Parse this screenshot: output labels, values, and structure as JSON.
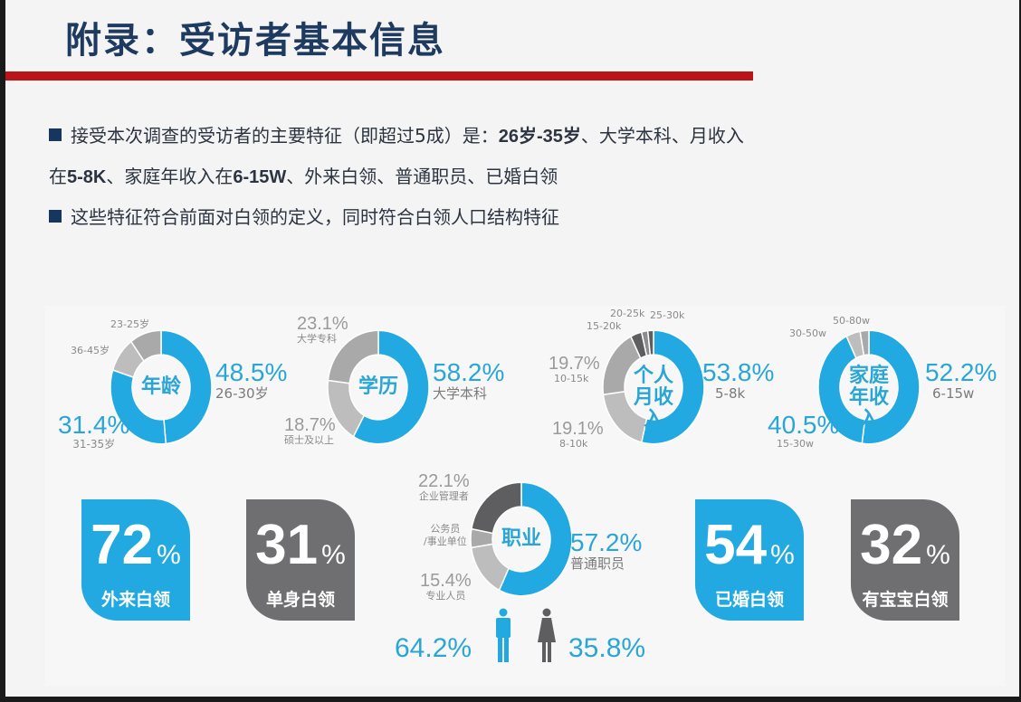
{
  "header": {
    "title": "附录：受访者基本信息"
  },
  "bullets": [
    {
      "line1_parts": [
        "接受本次调查的受访者的主要特征（即超过5成）是：",
        "26岁-35岁",
        "、大学本科、月收入"
      ],
      "line2_parts": [
        "在",
        "5-8K",
        "、家庭年收入在",
        "6-15W",
        "、外来白领、普通职员、已婚白领"
      ]
    },
    {
      "text": "这些特征符合前面对白领的定义，同时符合白领人口结构特征"
    }
  ],
  "colors": {
    "accent_blue": "#22a9e1",
    "light_gray": "#bdbdbd",
    "mid_gray": "#a6a6a6",
    "dark_gray": "#5e5e60",
    "title_navy": "#1e3a5f",
    "rule_red": "#b8141a"
  },
  "chart_data": [
    {
      "type": "pie",
      "title": "年龄",
      "donut": true,
      "slices": [
        {
          "label": "26-30岁",
          "value": 48.5,
          "color": "#22a9e1"
        },
        {
          "label": "31-35岁",
          "value": 31.4,
          "color": "#22a9e1"
        },
        {
          "label": "36-45岁",
          "value": 10.0,
          "color": "#bdbdbd",
          "value_shown": false
        },
        {
          "label": "23-25岁",
          "value": 10.1,
          "color": "#a9a9a9",
          "value_shown": false
        }
      ]
    },
    {
      "type": "pie",
      "title": "学历",
      "donut": true,
      "slices": [
        {
          "label": "大学本科",
          "value": 58.2,
          "color": "#22a9e1"
        },
        {
          "label": "硕士及以上",
          "value": 18.7,
          "color": "#bdbdbd"
        },
        {
          "label": "大学专科",
          "value": 23.1,
          "color": "#a9a9a9"
        }
      ]
    },
    {
      "type": "pie",
      "title": "个人月收入",
      "donut": true,
      "slices": [
        {
          "label": "5-8k",
          "value": 53.8,
          "color": "#22a9e1"
        },
        {
          "label": "8-10k",
          "value": 19.1,
          "color": "#bdbdbd"
        },
        {
          "label": "10-15k",
          "value": 19.7,
          "color": "#a9a9a9"
        },
        {
          "label": "15-20k",
          "value": 3.6,
          "color": "#5e5e60",
          "value_shown": false
        },
        {
          "label": "20-25k",
          "value": 2.0,
          "color": "#8c8c8c",
          "value_shown": false
        },
        {
          "label": "25-30k",
          "value": 1.8,
          "color": "#5e5e60",
          "value_shown": false
        }
      ]
    },
    {
      "type": "pie",
      "title": "家庭年收入",
      "donut": true,
      "slices": [
        {
          "label": "6-15w",
          "value": 52.2,
          "color": "#22a9e1"
        },
        {
          "label": "15-30w",
          "value": 40.5,
          "color": "#22a9e1"
        },
        {
          "label": "30-50w",
          "value": 4.5,
          "color": "#bdbdbd",
          "value_shown": false
        },
        {
          "label": "50-80w",
          "value": 2.8,
          "color": "#a9a9a9",
          "value_shown": false
        }
      ]
    },
    {
      "type": "pie",
      "title": "职业",
      "donut": true,
      "slices": [
        {
          "label": "普通职员",
          "value": 57.2,
          "color": "#22a9e1"
        },
        {
          "label": "专业人员",
          "value": 15.4,
          "color": "#bdbdbd"
        },
        {
          "label": "公务员/事业单位",
          "value": 5.3,
          "color": "#a9a9a9",
          "value_shown": false
        },
        {
          "label": "企业管理者",
          "value": 22.1,
          "color": "#5e5e60"
        }
      ]
    },
    {
      "type": "bar",
      "title": "性别",
      "categories": [
        "男",
        "女"
      ],
      "values": [
        64.2,
        35.8
      ]
    },
    {
      "type": "table",
      "title": "白领属性",
      "rows": [
        {
          "label": "外来白领",
          "value": 72
        },
        {
          "label": "单身白领",
          "value": 31
        },
        {
          "label": "已婚白领",
          "value": 54
        },
        {
          "label": "有宝宝白领",
          "value": 32
        }
      ]
    }
  ],
  "labels": {
    "age": {
      "center": "年龄",
      "main_pct": "48.5%",
      "main_sub": "26-30岁",
      "second_pct": "31.4%",
      "second_sub": "31-35岁",
      "small1": "36-45岁",
      "small2": "23-25岁"
    },
    "edu": {
      "center": "学历",
      "main_pct": "58.2%",
      "main_sub": "大学本科",
      "top_pct": "23.1%",
      "top_sub": "大学专科",
      "bottom_pct": "18.7%",
      "bottom_sub": "硕士及以上"
    },
    "income": {
      "center_line1": "个人",
      "center_line2": "月收入",
      "main_pct": "53.8%",
      "main_sub": "5-8k",
      "mid_pct": "19.7%",
      "mid_sub": "10-15k",
      "bottom_pct": "19.1%",
      "bottom_sub": "8-10k",
      "small1": "15-20k",
      "small2": "20-25k",
      "small3": "25-30k"
    },
    "family": {
      "center_line1": "家庭",
      "center_line2": "年收入",
      "main_pct": "52.2%",
      "main_sub": "6-15w",
      "second_pct": "40.5%",
      "second_sub": "15-30w",
      "small1": "30-50w",
      "small2": "50-80w"
    },
    "job": {
      "center": "职业",
      "main_pct": "57.2%",
      "main_sub": "普通职员",
      "top_pct": "22.1%",
      "top_sub": "企业管理者",
      "mid_sub1": "公务员",
      "mid_sub2": "/事业单位",
      "bottom_pct": "15.4%",
      "bottom_sub": "专业人员"
    },
    "gender": {
      "male_pct": "64.2%",
      "female_pct": "35.8%"
    }
  },
  "cards": [
    {
      "num": "72",
      "unit": "%",
      "caption": "外来白领"
    },
    {
      "num": "31",
      "unit": "%",
      "caption": "单身白领"
    },
    {
      "num": "54",
      "unit": "%",
      "caption": "已婚白领"
    },
    {
      "num": "32",
      "unit": "%",
      "caption": "有宝宝白领"
    }
  ]
}
